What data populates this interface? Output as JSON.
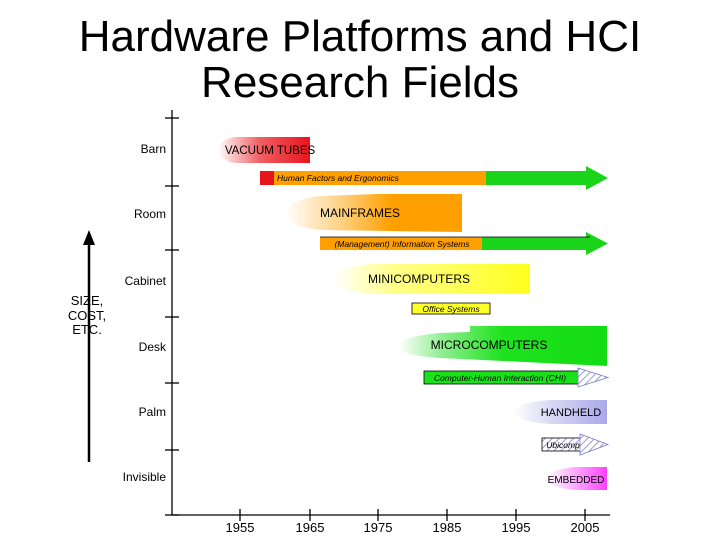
{
  "slide": {
    "title_line1": "Hardware Platforms and HCI",
    "title_line2": "Research Fields"
  },
  "y_axis": {
    "label": [
      "SIZE,",
      "COST,",
      "ETC."
    ],
    "levels": [
      "Barn",
      "Room",
      "Cabinet",
      "Desk",
      "Palm",
      "Invisible"
    ]
  },
  "x_axis": {
    "years": [
      "1955",
      "1965",
      "1975",
      "1985",
      "1995",
      "2005"
    ]
  },
  "platforms": [
    {
      "label": "VACUUM TUBES",
      "color": "#e8141c"
    },
    {
      "label": "MAINFRAMES",
      "color": "#ff9a00"
    },
    {
      "label": "MINICOMPUTERS",
      "color": "#ffff2a"
    },
    {
      "label": "MICROCOMPUTERS",
      "color": "#19e219"
    },
    {
      "label": "HANDHELD",
      "color": "#b8b8ec"
    },
    {
      "label": "EMBEDDED",
      "color": "#ff50ff"
    }
  ],
  "research_fields": [
    {
      "label": "Human Factors and Ergonomics"
    },
    {
      "label": "(Management) Information Systems"
    },
    {
      "label": "Office Systems"
    },
    {
      "label": "Computer-Human Interaction (CHI)"
    },
    {
      "label": "Ubicomp"
    }
  ]
}
